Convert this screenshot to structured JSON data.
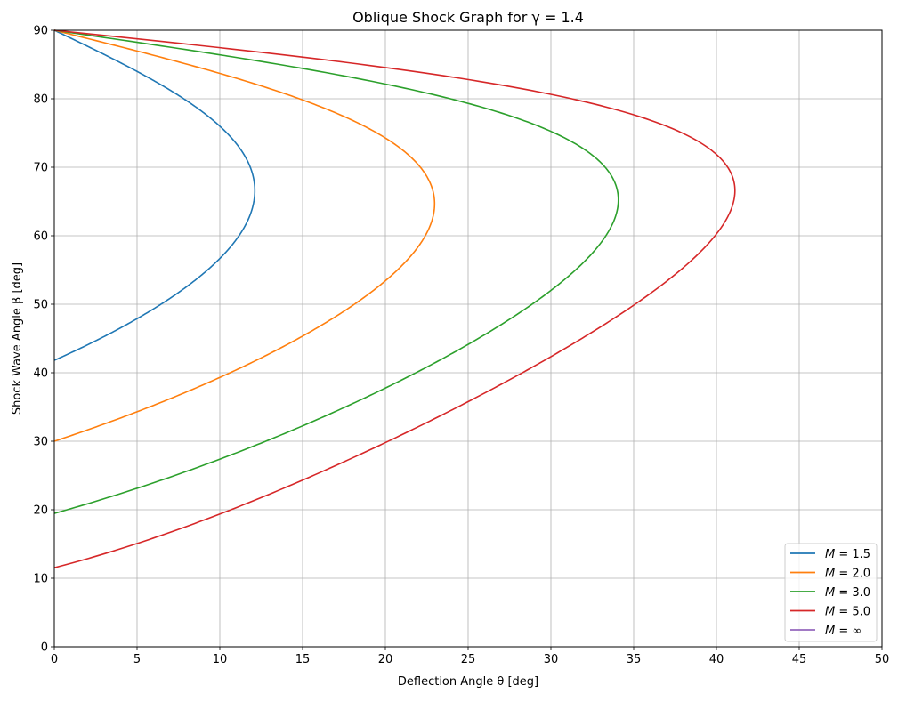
{
  "chart_data": {
    "type": "line",
    "title": "Oblique Shock Graph for γ = 1.4",
    "xlabel": "Deflection Angle θ [deg]",
    "ylabel": "Shock Wave Angle β [deg]",
    "xlim": [
      0,
      50
    ],
    "ylim": [
      0,
      90
    ],
    "xticks": [
      0,
      5,
      10,
      15,
      20,
      25,
      30,
      35,
      40,
      45,
      50
    ],
    "yticks": [
      0,
      10,
      20,
      30,
      40,
      50,
      60,
      70,
      80,
      90
    ],
    "xtick_labels": [
      "0",
      "5",
      "10",
      "15",
      "20",
      "25",
      "30",
      "35",
      "40",
      "45",
      "50"
    ],
    "ytick_labels": [
      "0",
      "10",
      "20",
      "30",
      "40",
      "50",
      "60",
      "70",
      "80",
      "90"
    ],
    "grid": true,
    "legend_position": "lower-right",
    "gamma": 1.4,
    "series": [
      {
        "name": "M = 1.5",
        "mach": 1.5,
        "color": "#1f77b4"
      },
      {
        "name": "M = 2.0",
        "mach": 2.0,
        "color": "#ff7f0e"
      },
      {
        "name": "M = 3.0",
        "mach": 3.0,
        "color": "#2ca02c"
      },
      {
        "name": "M = 5.0",
        "mach": 5.0,
        "color": "#d62728"
      },
      {
        "name": "M = ∞",
        "mach": "inf",
        "color": "#9467bd"
      }
    ],
    "legend": [
      {
        "prefix": "M",
        "suffix": " = 1.5"
      },
      {
        "prefix": "M",
        "suffix": " = 2.0"
      },
      {
        "prefix": "M",
        "suffix": " = 3.0"
      },
      {
        "prefix": "M",
        "suffix": " = 5.0"
      },
      {
        "prefix": "M",
        "suffix": " = ∞"
      }
    ]
  }
}
